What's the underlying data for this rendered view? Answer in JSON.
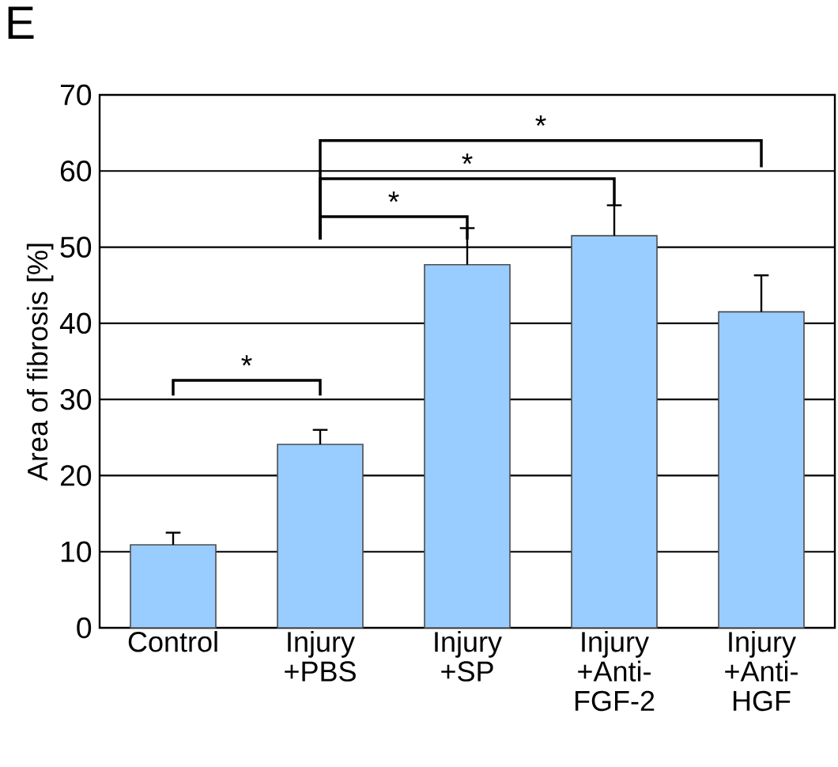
{
  "chart_data": {
    "type": "bar",
    "title": "E",
    "ylabel": "Area of fibrosis [%]",
    "categories": [
      "Control",
      "Injury +PBS",
      "Injury +SP",
      "Injury +Anti-FGF-2",
      "Injury +Anti-HGF"
    ],
    "values": [
      10.9,
      24.1,
      47.7,
      51.5,
      41.5
    ],
    "errors": [
      [
        10.9,
        12.5
      ],
      [
        24.1,
        26.0
      ],
      [
        47.7,
        52.5
      ],
      [
        51.5,
        55.5
      ],
      [
        41.5,
        46.3
      ]
    ],
    "color": "#99ccff",
    "ylim": [
      0,
      70
    ],
    "yticks": [
      0,
      10,
      20,
      30,
      40,
      50,
      60,
      70
    ],
    "grid": "y",
    "annotations": [
      "*",
      "*",
      "*",
      "*"
    ]
  }
}
